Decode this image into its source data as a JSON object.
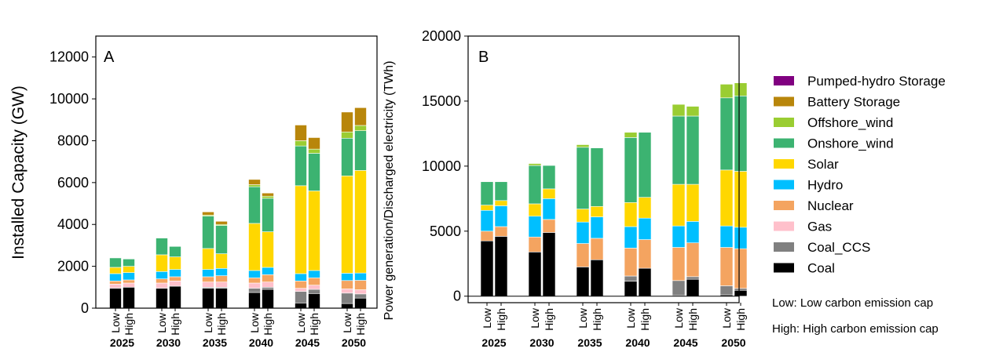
{
  "chart_data": [
    {
      "type": "bar",
      "stacked": true,
      "panel_label": "A",
      "ylabel": "Installed Capacity (GW)",
      "ylim": [
        0,
        13000
      ],
      "yticks": [
        "0",
        "2000",
        "4000",
        "6000",
        "8000",
        "10000",
        "12000"
      ],
      "scenario_labels": [
        "Low",
        "High"
      ],
      "years": [
        "2025",
        "2030",
        "2035",
        "2040",
        "2045",
        "2050"
      ],
      "categories": [
        "2025 Low",
        "2025 High",
        "2030 Low",
        "2030 High",
        "2035 Low",
        "2035 High",
        "2040 Low",
        "2040 High",
        "2045 Low",
        "2045 High",
        "2050 Low",
        "2050 High"
      ],
      "series": [
        {
          "name": "Coal",
          "color": "#000000",
          "values": [
            950,
            1000,
            950,
            1050,
            950,
            950,
            750,
            900,
            250,
            700,
            220,
            480
          ]
        },
        {
          "name": "Coal_CCS",
          "color": "#808080",
          "values": [
            0,
            0,
            0,
            0,
            50,
            50,
            200,
            100,
            550,
            200,
            500,
            200
          ]
        },
        {
          "name": "Gas",
          "color": "#ffc0cb",
          "values": [
            200,
            200,
            250,
            250,
            250,
            250,
            250,
            250,
            150,
            200,
            200,
            200
          ]
        },
        {
          "name": "Nuclear",
          "color": "#f4a460",
          "values": [
            150,
            150,
            200,
            200,
            250,
            300,
            250,
            350,
            350,
            350,
            400,
            450
          ]
        },
        {
          "name": "Hydro",
          "color": "#00bfff",
          "values": [
            350,
            350,
            350,
            350,
            350,
            350,
            350,
            350,
            350,
            350,
            350,
            350
          ]
        },
        {
          "name": "Solar",
          "color": "#ffd700",
          "values": [
            300,
            300,
            800,
            600,
            1000,
            700,
            2250,
            1700,
            4200,
            3800,
            4650,
            4900
          ]
        },
        {
          "name": "Onshore_wind",
          "color": "#3cb371",
          "values": [
            450,
            350,
            800,
            500,
            1550,
            1350,
            1750,
            1600,
            1900,
            1800,
            1800,
            1900
          ]
        },
        {
          "name": "Offshore_wind",
          "color": "#9acd32",
          "values": [
            0,
            0,
            0,
            0,
            50,
            50,
            100,
            100,
            250,
            200,
            300,
            250
          ]
        },
        {
          "name": "Battery Storage",
          "color": "#b8860b",
          "values": [
            0,
            0,
            0,
            0,
            150,
            150,
            250,
            150,
            750,
            550,
            950,
            850
          ]
        },
        {
          "name": "Pumped-hydro Storage",
          "color": "#800080",
          "values": [
            0,
            0,
            0,
            0,
            0,
            0,
            0,
            0,
            0,
            0,
            0,
            0
          ]
        }
      ]
    },
    {
      "type": "bar",
      "stacked": true,
      "panel_label": "B",
      "ylabel": "Power generation/Discharged electricity (TWh)",
      "ylim": [
        -500,
        20000
      ],
      "yticks": [
        "0",
        "5000",
        "10000",
        "15000",
        "20000"
      ],
      "scenario_labels": [
        "Low",
        "High"
      ],
      "years": [
        "2025",
        "2030",
        "2035",
        "2040",
        "2045",
        "2050"
      ],
      "categories": [
        "2025 Low",
        "2025 High",
        "2030 Low",
        "2030 High",
        "2035 Low",
        "2035 High",
        "2040 Low",
        "2040 High",
        "2045 Low",
        "2045 High",
        "2050 Low",
        "2050 High"
      ],
      "series": [
        {
          "name": "Coal",
          "color": "#000000",
          "values": [
            4250,
            4600,
            3400,
            4900,
            2250,
            2800,
            1150,
            2150,
            50,
            1300,
            100,
            450
          ]
        },
        {
          "name": "Coal_CCS",
          "color": "#808080",
          "values": [
            0,
            0,
            0,
            0,
            0,
            0,
            400,
            0,
            1150,
            200,
            700,
            150
          ]
        },
        {
          "name": "Nuclear",
          "color": "#f4a460",
          "values": [
            750,
            750,
            1150,
            1000,
            1800,
            1650,
            2150,
            2200,
            2550,
            2600,
            2950,
            3050
          ]
        },
        {
          "name": "Hydro",
          "color": "#00bfff",
          "values": [
            1600,
            1600,
            1600,
            1600,
            1650,
            1650,
            1650,
            1650,
            1650,
            1650,
            1650,
            1650
          ]
        },
        {
          "name": "Solar",
          "color": "#ffd700",
          "values": [
            400,
            400,
            950,
            750,
            1000,
            800,
            1850,
            1600,
            3200,
            2850,
            4300,
            4300
          ]
        },
        {
          "name": "Onshore_wind",
          "color": "#3cb371",
          "values": [
            1800,
            1450,
            2950,
            1800,
            4750,
            4500,
            5000,
            5000,
            5250,
            5250,
            5550,
            5800
          ]
        },
        {
          "name": "Offshore_wind",
          "color": "#9acd32",
          "values": [
            0,
            0,
            150,
            0,
            200,
            0,
            400,
            0,
            900,
            750,
            1050,
            1000
          ]
        }
      ]
    }
  ],
  "legend": {
    "items": [
      {
        "label": "Pumped-hydro Storage",
        "color": "#800080"
      },
      {
        "label": "Battery Storage",
        "color": "#b8860b"
      },
      {
        "label": "Offshore_wind",
        "color": "#9acd32"
      },
      {
        "label": "Onshore_wind",
        "color": "#3cb371"
      },
      {
        "label": "Solar",
        "color": "#ffd700"
      },
      {
        "label": "Hydro",
        "color": "#00bfff"
      },
      {
        "label": "Nuclear",
        "color": "#f4a460"
      },
      {
        "label": "Gas",
        "color": "#ffc0cb"
      },
      {
        "label": "Coal_CCS",
        "color": "#808080"
      },
      {
        "label": "Coal",
        "color": "#000000"
      }
    ],
    "notes": [
      "Low: Low carbon emission cap",
      "High: High carbon emission cap"
    ]
  }
}
